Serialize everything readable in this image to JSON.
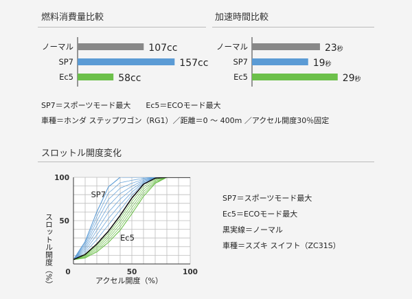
{
  "charts": {
    "fuel": {
      "title": "燃料消費量比較",
      "chart_data": {
        "type": "bar",
        "orientation": "horizontal",
        "categories": [
          "ノーマル",
          "SP7",
          "Ec5"
        ],
        "values": [
          107,
          157,
          58
        ],
        "value_labels": [
          "107cc",
          "157cc",
          "58cc"
        ],
        "colors": [
          "#888888",
          "#5b9bd5",
          "#6cc04a"
        ],
        "xlim": [
          0,
          180
        ]
      }
    },
    "accel": {
      "title": "加速時間比較",
      "chart_data": {
        "type": "bar",
        "orientation": "horizontal",
        "categories": [
          "ノーマル",
          "SP7",
          "Ec5"
        ],
        "values": [
          23,
          19,
          29
        ],
        "value_nums": [
          "23",
          "19",
          "29"
        ],
        "unit": "秒",
        "colors": [
          "#888888",
          "#5b9bd5",
          "#6cc04a"
        ],
        "xlim": [
          0,
          33
        ]
      }
    },
    "throttle": {
      "title": "スロットル開度変化",
      "chart_data": {
        "type": "line",
        "xlabel": "アクセル開度（%）",
        "ylabel": "スロットル開度（%）",
        "xlim": [
          0,
          100
        ],
        "ylim": [
          0,
          100
        ],
        "xticks": [
          "0",
          "50",
          "100"
        ],
        "yticks": [
          "50",
          "100"
        ],
        "grid": true,
        "series": [
          {
            "name": "SP7",
            "color": "#5b9bd5",
            "x": [
              0,
              10,
              20,
              30,
              40,
              50,
              60,
              70
            ],
            "y": [
              5,
              26,
              60,
              89,
              100,
              100,
              100,
              100
            ]
          },
          {
            "name": "Ec5",
            "color": "#6cc04a",
            "x": [
              0,
              10,
              20,
              30,
              40,
              50,
              60,
              70,
              80
            ],
            "y": [
              5,
              7,
              14,
              25,
              39,
              58,
              78,
              93,
              100
            ]
          },
          {
            "color": "#111111",
            "x": [
              0,
              10,
              20,
              30,
              40,
              50,
              60,
              70,
              80,
              90,
              100
            ],
            "y": [
              5,
              11,
              23,
              38,
              56,
              76,
              92,
              99,
              100,
              100,
              100
            ]
          }
        ]
      }
    }
  },
  "notes_top": {
    "line1": "SP7＝スポーツモード最大　　Ec5＝ECOモード最大",
    "line2": "車種＝ホンダ ステップワゴン（RG1）／距離＝0 〜 400m ／アクセル開度30％固定"
  },
  "notes_right": {
    "line1": "SP7＝スポーツモード最大",
    "line2": "Ec5＝ECOモード最大",
    "line3": "黒実線＝ノーマル",
    "line4": "車種＝スズキ スイフト（ZC31S）"
  }
}
